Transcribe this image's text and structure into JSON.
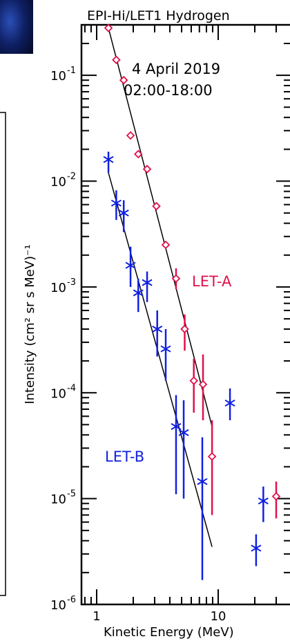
{
  "chart_data": {
    "type": "scatter",
    "title": "EPI-Hi/LET1 Hydrogen",
    "annotations": [
      "4 April 2019",
      "02:00-18:00"
    ],
    "xlabel": "Kinetic Energy (MeV)",
    "ylabel": "Intensity (cm² sr s MeV)⁻¹",
    "x_scale": "log",
    "y_scale": "log",
    "xlim": [
      0.75,
      40
    ],
    "ylim": [
      1e-06,
      0.3
    ],
    "x_tick_labels": [
      {
        "value": 1,
        "label": "1"
      },
      {
        "value": 10,
        "label": "10"
      }
    ],
    "y_tick_labels": [
      {
        "value": 0.1,
        "base": "10",
        "exp": "-1"
      },
      {
        "value": 0.01,
        "base": "10",
        "exp": "-2"
      },
      {
        "value": 0.001,
        "base": "10",
        "exp": "-3"
      },
      {
        "value": 0.0001,
        "base": "10",
        "exp": "-4"
      },
      {
        "value": 1e-05,
        "base": "10",
        "exp": "-5"
      },
      {
        "value": 1e-06,
        "base": "10",
        "exp": "-6"
      }
    ],
    "legend": "in-plot labels",
    "series": [
      {
        "name": "LET-A",
        "marker": "diamond",
        "color": "#e0104a",
        "label_position": "right-middle",
        "x": [
          1.25,
          1.45,
          1.67,
          1.9,
          2.2,
          2.6,
          3.1,
          3.7,
          4.5,
          5.3,
          6.3,
          7.5,
          8.9,
          30
        ],
        "y": [
          0.28,
          0.14,
          0.09,
          0.027,
          0.018,
          0.013,
          0.0058,
          0.0025,
          0.0012,
          0.0004,
          0.00013,
          0.00012,
          2.5e-05,
          1.05e-05
        ],
        "y_low": [
          null,
          null,
          null,
          null,
          null,
          null,
          null,
          null,
          0.00095,
          0.00025,
          6.5e-05,
          5.5e-05,
          7e-06,
          6.5e-06
        ],
        "y_high": [
          null,
          null,
          null,
          null,
          null,
          null,
          null,
          null,
          0.0015,
          0.00055,
          0.00021,
          0.00023,
          5.5e-05,
          1.45e-05
        ],
        "fit": {
          "x": [
            1.25,
            8.9
          ],
          "y": [
            0.28,
            4.8e-05
          ]
        }
      },
      {
        "name": "LET-B",
        "marker": "star",
        "color": "#1020e0",
        "label_position": "left-lower",
        "x": [
          1.25,
          1.45,
          1.67,
          1.9,
          2.2,
          2.6,
          3.15,
          3.7,
          4.5,
          5.2,
          7.4,
          12.5,
          20.5,
          23.5
        ],
        "y": [
          0.016,
          0.0062,
          0.005,
          0.0016,
          0.00088,
          0.0011,
          0.0004,
          0.00026,
          4.8e-05,
          4.2e-05,
          1.45e-05,
          8e-05,
          3.4e-06,
          9.5e-06
        ],
        "y_low": [
          0.012,
          0.0043,
          0.0033,
          0.001,
          0.00058,
          0.00072,
          0.00022,
          0.00013,
          1.1e-05,
          1e-05,
          1.7e-06,
          5.5e-05,
          2.3e-06,
          6e-06
        ],
        "y_high": [
          0.019,
          0.0082,
          0.0066,
          0.0024,
          0.0012,
          0.0014,
          0.0006,
          0.0004,
          9.5e-05,
          8.5e-05,
          3.8e-05,
          0.00011,
          4.6e-06,
          1.3e-05
        ],
        "fit": {
          "x": [
            1.25,
            8.9
          ],
          "y": [
            0.012,
            3.5e-06
          ]
        }
      }
    ]
  }
}
